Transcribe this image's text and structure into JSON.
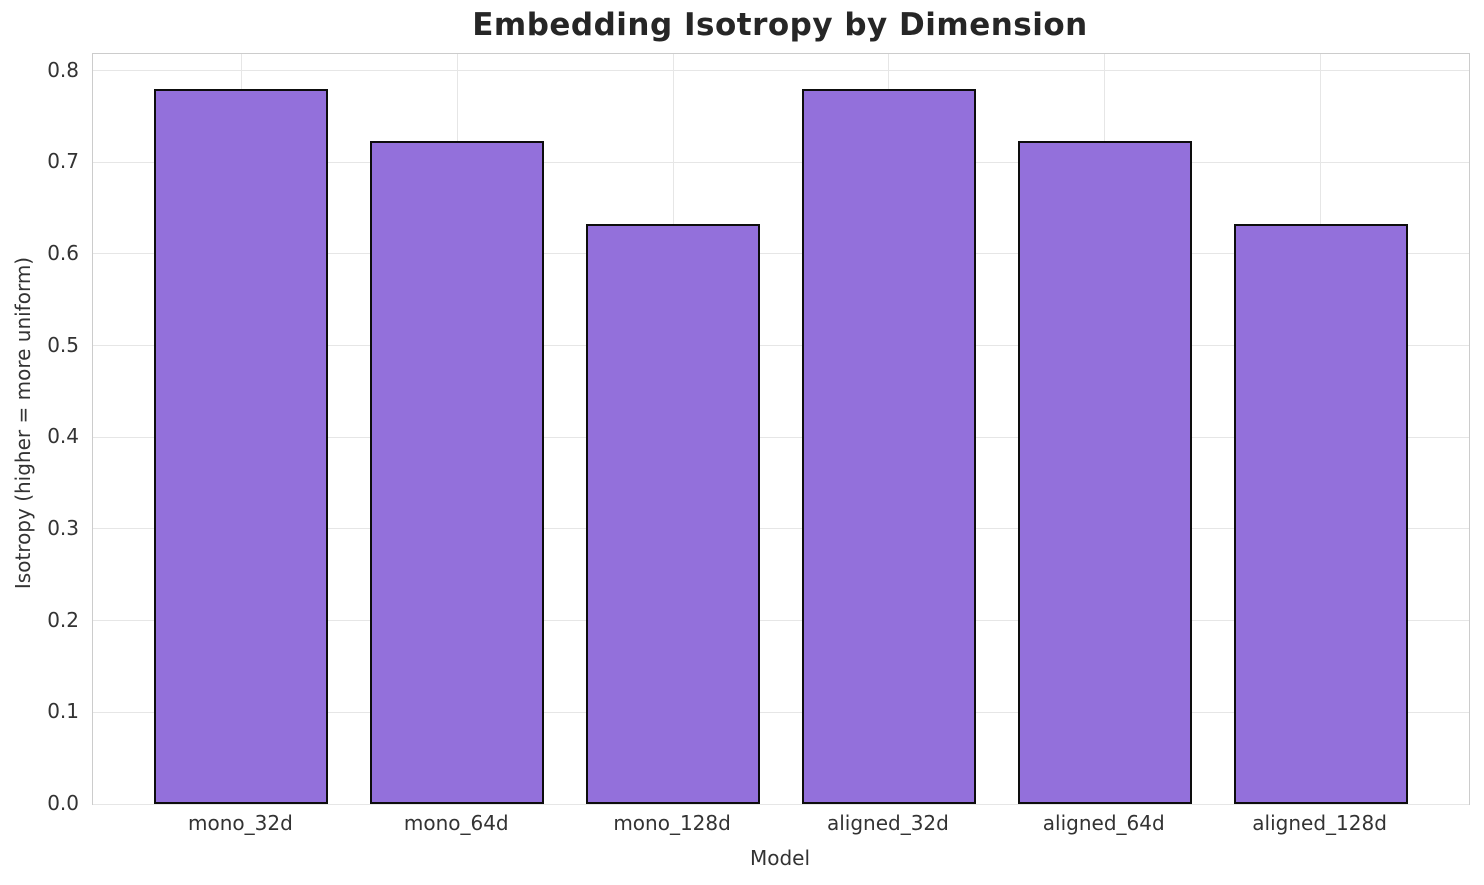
{
  "chart_data": {
    "type": "bar",
    "title": "Embedding Isotropy by Dimension",
    "xlabel": "Model",
    "ylabel": "Isotropy (higher = more uniform)",
    "categories": [
      "mono_32d",
      "mono_64d",
      "mono_128d",
      "aligned_32d",
      "aligned_64d",
      "aligned_128d"
    ],
    "values": [
      0.78,
      0.723,
      0.633,
      0.78,
      0.723,
      0.633
    ],
    "ylim": [
      0,
      0.818
    ],
    "yticks": [
      "0.0",
      "0.1",
      "0.2",
      "0.3",
      "0.4",
      "0.5",
      "0.6",
      "0.7",
      "0.8"
    ],
    "grid": true,
    "legend": "none",
    "colors": {
      "bar_fill": "#9370DB",
      "bar_edge": "#0d0d0d",
      "grid": "#e6e6e6",
      "spine": "#cccccc",
      "title_text": "#262626",
      "tick_text": "#333333",
      "background": "#ffffff"
    }
  }
}
